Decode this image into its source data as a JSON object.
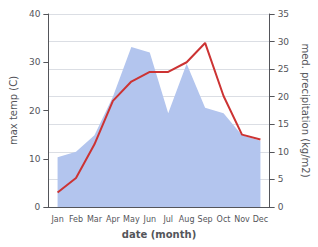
{
  "chart_data": {
    "type": "line",
    "categories": [
      "Jan",
      "Feb",
      "Mar",
      "Apr",
      "May",
      "Jun",
      "Jul",
      "Aug",
      "Sep",
      "Oct",
      "Nov",
      "Dec"
    ],
    "xlabel": "date (month)",
    "ylabel": "max temp (C)",
    "y2label": "med. precipitation (kg/m2)",
    "series": [
      {
        "type": "area",
        "axis": "y2",
        "color": "#b3c5ee",
        "values": [
          9,
          10,
          13,
          20,
          29,
          28,
          17,
          26,
          18,
          17,
          13,
          12
        ]
      },
      {
        "type": "line",
        "color": "#cc3333",
        "values": [
          3,
          6,
          13,
          22,
          26,
          28,
          28,
          30,
          34,
          23,
          15,
          14
        ]
      }
    ],
    "ylim": [
      0,
      40
    ],
    "yticks": [
      0,
      10,
      20,
      30,
      40
    ],
    "y2lim": [
      0,
      35
    ],
    "y2ticks": [
      0,
      5,
      10,
      15,
      20,
      25,
      30,
      35
    ],
    "grid": true
  }
}
